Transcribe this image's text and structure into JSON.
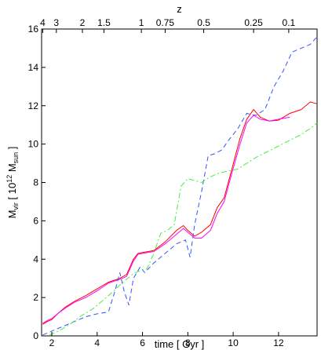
{
  "chart_data": {
    "type": "line",
    "xlabel": "time [ Gyr ]",
    "ylabel_main": "M",
    "ylabel_sub": "vir",
    "ylabel_mid": " [ 10",
    "ylabel_sup": "12",
    "ylabel_mid2": " M",
    "ylabel_sub2": "sun",
    "ylabel_end": " ]",
    "top_axis_label": "z",
    "xlim": [
      1.55,
      13.7
    ],
    "ylim": [
      0,
      16
    ],
    "x_ticks": [
      2,
      4,
      6,
      8,
      10,
      12
    ],
    "y_ticks": [
      0,
      2,
      4,
      6,
      8,
      10,
      12,
      14,
      16
    ],
    "top_ticks": [
      {
        "label": "4",
        "t": 1.6
      },
      {
        "label": "3",
        "t": 2.2
      },
      {
        "label": "2",
        "t": 3.35
      },
      {
        "label": "1.5",
        "t": 4.3
      },
      {
        "label": "1",
        "t": 5.95
      },
      {
        "label": "0.75",
        "t": 7.0
      },
      {
        "label": "0.5",
        "t": 8.7
      },
      {
        "label": "0.25",
        "t": 10.9
      },
      {
        "label": "0.1",
        "t": 12.45
      }
    ],
    "grid": false,
    "series": [
      {
        "color": "#ff0000",
        "dash": "solid",
        "x": [
          1.6,
          1.8,
          2.0,
          2.3,
          2.6,
          3.0,
          3.5,
          4.0,
          4.5,
          5.0,
          5.3,
          5.6,
          5.8,
          6.0,
          6.5,
          7.0,
          7.5,
          7.8,
          8.0,
          8.3,
          8.6,
          9.0,
          9.3,
          9.6,
          9.9,
          10.3,
          10.6,
          10.9,
          11.2,
          11.6,
          12.0,
          12.5,
          13.0,
          13.4,
          13.7
        ],
        "y": [
          0.6,
          0.75,
          0.85,
          1.2,
          1.5,
          1.8,
          2.1,
          2.45,
          2.8,
          3.0,
          3.2,
          4.0,
          4.3,
          4.35,
          4.45,
          4.9,
          5.5,
          5.75,
          5.5,
          5.2,
          5.4,
          5.8,
          6.7,
          7.2,
          8.5,
          10.3,
          11.3,
          11.8,
          11.4,
          11.2,
          11.25,
          11.6,
          11.8,
          12.2,
          12.1
        ]
      },
      {
        "color": "#ff00ff",
        "dash": "solid",
        "x": [
          1.6,
          1.8,
          2.0,
          2.3,
          2.6,
          3.0,
          3.5,
          4.0,
          4.5,
          5.0,
          5.3,
          5.6,
          5.8,
          6.0,
          6.5,
          7.0,
          7.5,
          7.8,
          8.0,
          8.3,
          8.6,
          9.0,
          9.3,
          9.6,
          9.9,
          10.3,
          10.6,
          10.9,
          11.2,
          11.6,
          12.0,
          12.5
        ],
        "y": [
          0.65,
          0.8,
          0.9,
          1.2,
          1.45,
          1.75,
          2.0,
          2.35,
          2.75,
          2.95,
          3.1,
          3.9,
          4.25,
          4.3,
          4.4,
          4.8,
          5.3,
          5.6,
          5.4,
          5.1,
          5.1,
          5.5,
          6.4,
          7.0,
          8.3,
          10.0,
          11.1,
          11.5,
          11.3,
          11.2,
          11.3,
          11.4
        ]
      },
      {
        "color": "#3355ff",
        "dash": "dashed",
        "x": [
          1.6,
          2.0,
          2.5,
          3.0,
          3.5,
          4.0,
          4.5,
          4.8,
          5.0,
          5.2,
          5.4,
          5.6,
          5.9,
          6.1,
          6.5,
          7.0,
          7.5,
          7.9,
          8.1,
          8.3,
          8.6,
          8.9,
          9.2,
          9.5,
          9.8,
          10.2,
          10.6,
          11.0,
          11.4,
          11.8,
          12.2,
          12.6,
          13.0,
          13.4,
          13.7
        ],
        "y": [
          0.05,
          0.25,
          0.5,
          0.75,
          1.0,
          1.15,
          1.25,
          2.4,
          3.3,
          2.3,
          1.6,
          3.0,
          3.6,
          3.3,
          3.8,
          4.3,
          4.8,
          5.0,
          4.1,
          5.8,
          7.5,
          9.4,
          9.5,
          9.7,
          10.2,
          10.8,
          11.6,
          11.5,
          11.8,
          13.0,
          13.8,
          14.8,
          15.0,
          15.2,
          15.6
        ]
      },
      {
        "color": "#44ee44",
        "dash": "dashdot",
        "x": [
          1.9,
          2.3,
          2.8,
          3.3,
          3.8,
          4.3,
          4.7,
          5.0,
          5.3,
          5.6,
          5.9,
          6.2,
          6.5,
          6.8,
          7.1,
          7.4,
          7.7,
          8.0,
          8.3,
          8.6,
          9.0,
          9.4,
          9.8,
          10.2,
          10.6,
          11.0,
          11.5,
          12.0,
          12.5,
          13.0,
          13.5,
          13.7
        ],
        "y": [
          0.05,
          0.25,
          0.6,
          1.05,
          1.4,
          1.9,
          2.3,
          2.65,
          2.95,
          3.25,
          3.4,
          3.5,
          4.3,
          5.35,
          5.5,
          5.8,
          7.8,
          8.2,
          8.1,
          8.0,
          8.3,
          8.5,
          8.6,
          8.7,
          9.0,
          9.3,
          9.6,
          9.9,
          10.2,
          10.5,
          10.9,
          11.1
        ]
      }
    ]
  }
}
